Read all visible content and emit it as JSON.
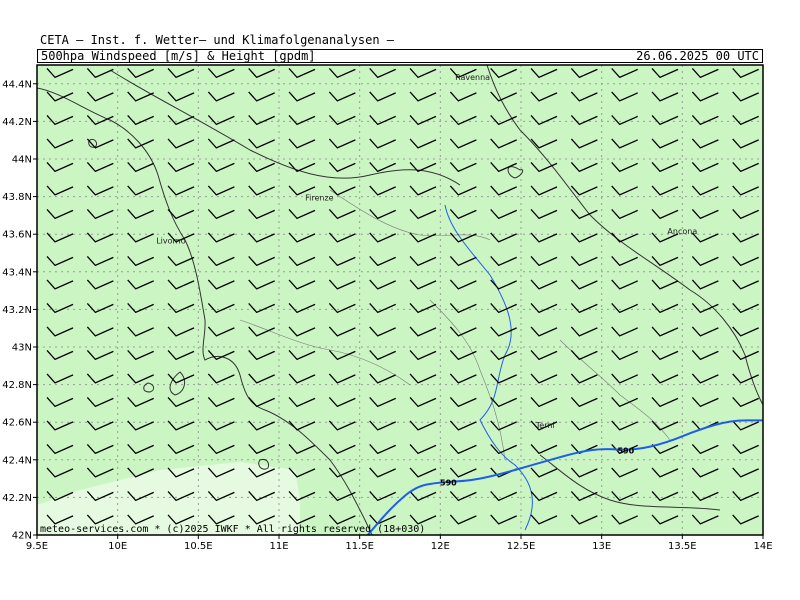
{
  "header": {
    "line1": "CETA — Inst. f. Wetter— und Klimafolgenanalysen —",
    "line2": "500hpa_Windspeed_[m/s]_&_Height_[gpdm]",
    "date": "26.06.2025 00 UTC"
  },
  "footer": {
    "credit": "meteo-services.com * (c)2025 IWKF * All rights reserved (18+030)"
  },
  "map": {
    "lon_range": [
      9.5,
      14.0
    ],
    "lat_range": [
      42.0,
      44.5
    ],
    "lon_ticks": [
      {
        "value": 9.5,
        "label": "9.5E"
      },
      {
        "value": 10.0,
        "label": "10E"
      },
      {
        "value": 10.5,
        "label": "10.5E"
      },
      {
        "value": 11.0,
        "label": "11E"
      },
      {
        "value": 11.5,
        "label": "11.5E"
      },
      {
        "value": 12.0,
        "label": "12E"
      },
      {
        "value": 12.5,
        "label": "12.5E"
      },
      {
        "value": 13.0,
        "label": "13E"
      },
      {
        "value": 13.5,
        "label": "13.5E"
      },
      {
        "value": 14.0,
        "label": "14E"
      }
    ],
    "lat_ticks": [
      {
        "value": 42.0,
        "label": "42N"
      },
      {
        "value": 42.2,
        "label": "42.2N"
      },
      {
        "value": 42.4,
        "label": "42.4N"
      },
      {
        "value": 42.6,
        "label": "42.6N"
      },
      {
        "value": 42.8,
        "label": "42.8N"
      },
      {
        "value": 43.0,
        "label": "43N"
      },
      {
        "value": 43.2,
        "label": "43.2N"
      },
      {
        "value": 43.4,
        "label": "43.4N"
      },
      {
        "value": 43.6,
        "label": "43.6N"
      },
      {
        "value": 43.8,
        "label": "43.8N"
      },
      {
        "value": 44.0,
        "label": "44N"
      },
      {
        "value": 44.2,
        "label": "44.2N"
      },
      {
        "value": 44.4,
        "label": "44.4N"
      }
    ],
    "cities": [
      {
        "name": "Ravenna",
        "lon": 12.2,
        "lat": 44.42
      },
      {
        "name": "Firenze",
        "lon": 11.25,
        "lat": 43.78
      },
      {
        "name": "Livorno",
        "lon": 10.33,
        "lat": 43.55
      },
      {
        "name": "Ancona",
        "lon": 13.5,
        "lat": 43.6
      },
      {
        "name": "Terni",
        "lon": 12.65,
        "lat": 42.57
      }
    ],
    "contour": {
      "label": "590",
      "label_points": [
        {
          "lon": 12.05,
          "lat": 42.28
        },
        {
          "lon": 13.15,
          "lat": 42.45
        }
      ],
      "path": [
        [
          11.55,
          42.0
        ],
        [
          11.7,
          42.15
        ],
        [
          11.85,
          42.26
        ],
        [
          12.0,
          42.28
        ],
        [
          12.2,
          42.29
        ],
        [
          12.4,
          42.33
        ],
        [
          12.6,
          42.38
        ],
        [
          12.85,
          42.44
        ],
        [
          13.0,
          42.46
        ],
        [
          13.2,
          42.45
        ],
        [
          13.4,
          42.49
        ],
        [
          13.6,
          42.56
        ],
        [
          13.8,
          42.61
        ],
        [
          14.0,
          42.61
        ]
      ]
    },
    "colors": {
      "fill": "#ccf5c4",
      "fill_light": "#e6fae1",
      "grid": "#9a9a9a",
      "barb": "#000000",
      "border": "#333333",
      "river": "#1f5fe8",
      "contour": "#1f5fe8"
    },
    "wind_barbs": {
      "direction": "westerly",
      "grid_lon_step": 0.25,
      "grid_lat_step": 0.125
    }
  }
}
